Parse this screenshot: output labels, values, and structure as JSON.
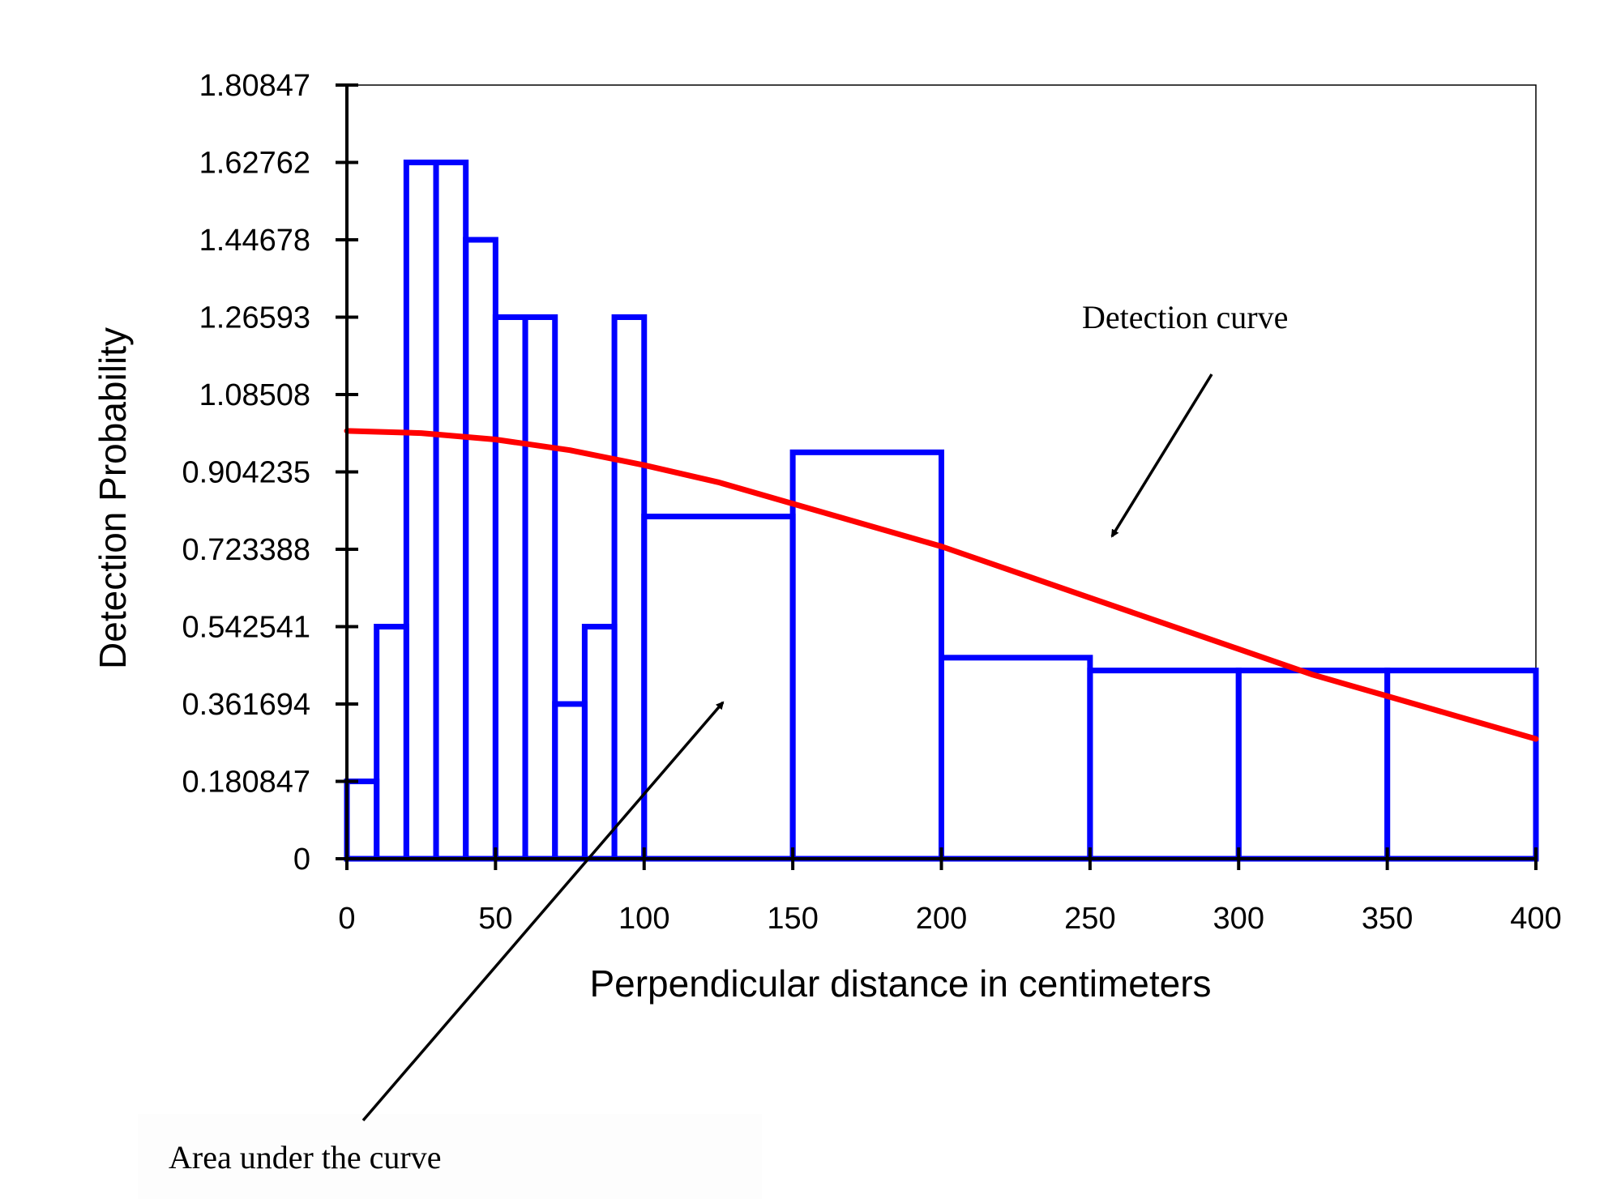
{
  "chart_data": {
    "type": "bar",
    "xlabel": "Perpendicular distance in centimeters",
    "ylabel": "Detection Probability",
    "xlim": [
      0,
      400
    ],
    "ylim": [
      0,
      1.80847
    ],
    "x_ticks": [
      "0",
      "50",
      "100",
      "150",
      "200",
      "250",
      "300",
      "350",
      "400"
    ],
    "y_ticks": [
      "0",
      "0.180847",
      "0.361694",
      "0.542541",
      "0.723388",
      "0.904235",
      "1.08508",
      "1.26593",
      "1.44678",
      "1.62762",
      "1.80847"
    ],
    "histogram": {
      "name": "",
      "bins": [
        {
          "x0": 0,
          "x1": 10,
          "value": 0.180847
        },
        {
          "x0": 10,
          "x1": 20,
          "value": 0.542541
        },
        {
          "x0": 20,
          "x1": 30,
          "value": 1.62762
        },
        {
          "x0": 30,
          "x1": 40,
          "value": 1.62762
        },
        {
          "x0": 40,
          "x1": 50,
          "value": 1.44678
        },
        {
          "x0": 50,
          "x1": 60,
          "value": 1.26593
        },
        {
          "x0": 60,
          "x1": 70,
          "value": 1.26593
        },
        {
          "x0": 70,
          "x1": 80,
          "value": 0.361694
        },
        {
          "x0": 80,
          "x1": 90,
          "value": 0.542541
        },
        {
          "x0": 90,
          "x1": 100,
          "value": 1.26593
        },
        {
          "x0": 100,
          "x1": 150,
          "value": 0.8
        },
        {
          "x0": 150,
          "x1": 200,
          "value": 0.95
        },
        {
          "x0": 200,
          "x1": 250,
          "value": 0.47
        },
        {
          "x0": 250,
          "x1": 300,
          "value": 0.44
        },
        {
          "x0": 300,
          "x1": 350,
          "value": 0.44
        },
        {
          "x0": 350,
          "x1": 400,
          "value": 0.44
        }
      ],
      "color": "#0000ff"
    },
    "curve": {
      "name": "",
      "color": "#ff0000",
      "points": [
        {
          "x": 0,
          "y": 1.0
        },
        {
          "x": 25,
          "y": 0.995
        },
        {
          "x": 50,
          "y": 0.98
        },
        {
          "x": 75,
          "y": 0.955
        },
        {
          "x": 100,
          "y": 0.92
        },
        {
          "x": 125,
          "y": 0.88
        },
        {
          "x": 150,
          "y": 0.83
        },
        {
          "x": 175,
          "y": 0.78
        },
        {
          "x": 200,
          "y": 0.73
        },
        {
          "x": 225,
          "y": 0.67
        },
        {
          "x": 250,
          "y": 0.61
        },
        {
          "x": 275,
          "y": 0.55
        },
        {
          "x": 300,
          "y": 0.49
        },
        {
          "x": 325,
          "y": 0.43
        },
        {
          "x": 350,
          "y": 0.38
        },
        {
          "x": 375,
          "y": 0.33
        },
        {
          "x": 400,
          "y": 0.28
        }
      ]
    },
    "annotations": [
      {
        "text": "Detection curve"
      },
      {
        "text": "Area under the curve"
      }
    ]
  }
}
